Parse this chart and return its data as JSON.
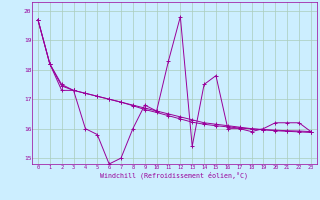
{
  "xlabel": "Windchill (Refroidissement éolien,°C)",
  "ylabel": "",
  "bg_color": "#cceeff",
  "line_color": "#990099",
  "grid_color": "#aaccbb",
  "xlim": [
    -0.5,
    23.5
  ],
  "ylim": [
    14.8,
    20.3
  ],
  "yticks": [
    15,
    16,
    17,
    18,
    19,
    20
  ],
  "xticks": [
    0,
    1,
    2,
    3,
    4,
    5,
    6,
    7,
    8,
    9,
    10,
    11,
    12,
    13,
    14,
    15,
    16,
    17,
    18,
    19,
    20,
    21,
    22,
    23
  ],
  "series1": [
    19.7,
    18.2,
    17.3,
    17.3,
    16.0,
    15.8,
    14.8,
    15.0,
    16.0,
    16.8,
    16.6,
    18.3,
    19.8,
    15.4,
    17.5,
    17.8,
    16.0,
    16.0,
    15.9,
    16.0,
    16.2,
    16.2,
    16.2,
    15.9
  ],
  "series2": [
    19.7,
    18.2,
    17.5,
    17.3,
    17.2,
    17.1,
    17.0,
    16.9,
    16.8,
    16.7,
    16.6,
    16.5,
    16.4,
    16.3,
    16.2,
    16.15,
    16.1,
    16.05,
    16.0,
    15.97,
    15.95,
    15.93,
    15.92,
    15.9
  ],
  "series3": [
    19.7,
    18.2,
    17.45,
    17.3,
    17.2,
    17.1,
    17.0,
    16.9,
    16.78,
    16.65,
    16.55,
    16.44,
    16.33,
    16.22,
    16.15,
    16.1,
    16.06,
    16.02,
    15.99,
    15.96,
    15.93,
    15.91,
    15.89,
    15.87
  ]
}
